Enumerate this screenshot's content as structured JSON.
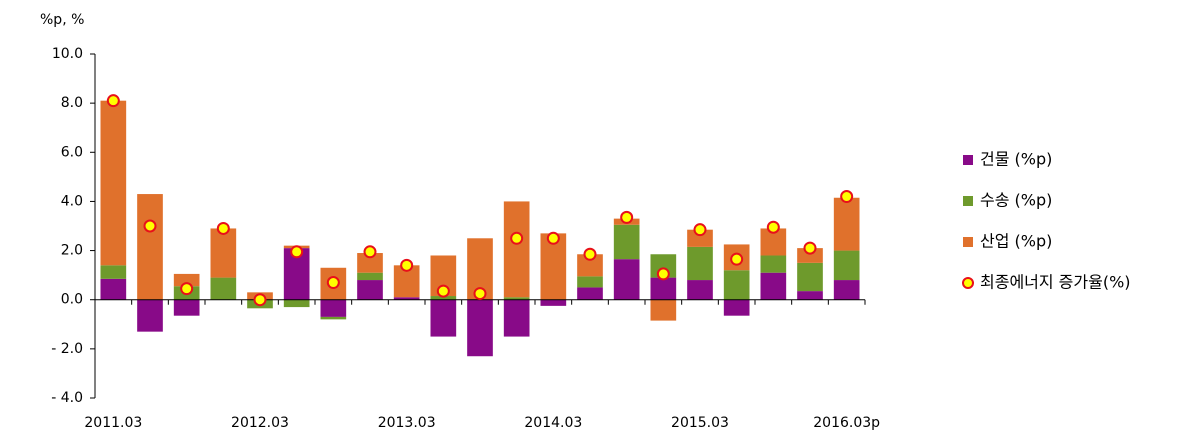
{
  "chart_data": {
    "type": "bar",
    "stacked": true,
    "y_axis_label": "%p, %",
    "categories": [
      "2011.03",
      null,
      null,
      null,
      "2012.03",
      null,
      null,
      null,
      "2013.03",
      null,
      null,
      null,
      "2014.03",
      null,
      null,
      null,
      "2015.03",
      null,
      null,
      null,
      "2016.03p"
    ],
    "series": [
      {
        "name": "건물 (%p)",
        "color": "#880a88",
        "type": "bar",
        "values": [
          0.85,
          -1.3,
          -0.65,
          0,
          0,
          2.1,
          -0.7,
          0.8,
          0.1,
          -1.5,
          -2.3,
          -1.5,
          -0.25,
          0.5,
          1.65,
          0.9,
          0.8,
          -0.65,
          1.1,
          0.35,
          0.8
        ]
      },
      {
        "name": "수송 (%p)",
        "color": "#6e9a2c",
        "type": "bar",
        "values": [
          0.55,
          0,
          0.55,
          0.9,
          -0.35,
          -0.3,
          -0.1,
          0.3,
          0,
          0.15,
          0,
          0.1,
          0,
          0.45,
          1.4,
          0.95,
          1.35,
          1.2,
          0.7,
          1.15,
          1.2
        ]
      },
      {
        "name": "산업 (%p)",
        "color": "#e0712c",
        "type": "bar",
        "values": [
          6.7,
          4.3,
          0.5,
          2.0,
          0.3,
          0.1,
          1.3,
          0.8,
          1.3,
          1.65,
          2.5,
          3.9,
          2.7,
          0.9,
          0.25,
          -0.85,
          0.7,
          1.05,
          1.1,
          0.6,
          2.15
        ]
      },
      {
        "name": "최종에너지 증가율(%)",
        "color": "#ffff00",
        "edge_color": "#e8101a",
        "type": "scatter",
        "values": [
          8.1,
          3.0,
          0.45,
          2.9,
          0.0,
          1.95,
          0.7,
          1.95,
          1.4,
          0.35,
          0.25,
          2.5,
          2.5,
          1.85,
          3.35,
          1.05,
          2.85,
          1.65,
          2.95,
          2.1,
          4.2
        ]
      }
    ],
    "ylim": [
      -4,
      10
    ],
    "yticks": [
      {
        "value": -4,
        "label": "- 4.0"
      },
      {
        "value": -2,
        "label": "- 2.0"
      },
      {
        "value": 0,
        "label": "0.0"
      },
      {
        "value": 2,
        "label": "2.0"
      },
      {
        "value": 4,
        "label": "4.0"
      },
      {
        "value": 6,
        "label": "6.0"
      },
      {
        "value": 8,
        "label": "8.0"
      },
      {
        "value": 10,
        "label": "10.0"
      }
    ],
    "legend": "right"
  }
}
